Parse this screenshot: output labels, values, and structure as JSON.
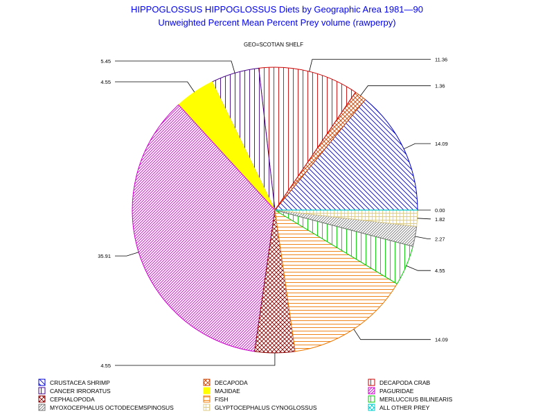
{
  "chart_data": {
    "type": "pie",
    "title": "HIPPOGLOSSUS HIPPOGLOSSUS Diets by Geographic Area 1981—90",
    "subtitle": "Unweighted Percent Mean Percent Prey  volume (rawperpy)",
    "geo_label": "GEO=SCOTIAN SHELF",
    "start_angle_deg": 0,
    "direction": "counterclockwise",
    "legend_position": "bottom",
    "slices": [
      {
        "name": "CRUSTACEA SHRIMP",
        "value": 14.09,
        "label": "14.09",
        "color": "#0000cc",
        "pattern": "diag-down"
      },
      {
        "name": "DECAPODA",
        "value": 1.36,
        "label": "1.36",
        "color": "#cc4400",
        "pattern": "cross"
      },
      {
        "name": "DECAPODA CRAB",
        "value": 11.36,
        "label": "11.36",
        "color": "#cc0000",
        "pattern": "vert"
      },
      {
        "name": "CANCER IRRORATUS",
        "value": 5.45,
        "label": "5.45",
        "color": "#440088",
        "pattern": "vert"
      },
      {
        "name": "MAJIDAE",
        "value": 4.55,
        "label": "4.55",
        "color": "#ffff00",
        "pattern": "solid"
      },
      {
        "name": "PAGURIDAE",
        "value": 35.91,
        "label": "35.91",
        "color": "#cc00cc",
        "pattern": "diag-up"
      },
      {
        "name": "CEPHALOPODA",
        "value": 4.55,
        "label": "4.55",
        "color": "#880000",
        "pattern": "cross"
      },
      {
        "name": "FISH",
        "value": 14.09,
        "label": "14.09",
        "color": "#ee7700",
        "pattern": "horiz"
      },
      {
        "name": "MERLUCCIUS BILINEARIS",
        "value": 4.55,
        "label": "4.55",
        "color": "#00cc00",
        "pattern": "vert"
      },
      {
        "name": "MYOXOCEPHALUS OCTODECEMSPINOSUS",
        "value": 2.27,
        "label": "2.27",
        "color": "#777777",
        "pattern": "diag-up"
      },
      {
        "name": "GLYPTOCEPHALUS CYNOGLOSSUS",
        "value": 1.82,
        "label": "1.82",
        "color": "#ddcc88",
        "pattern": "grid"
      },
      {
        "name": "ALL OTHER PREY",
        "value": 0.0,
        "label": "0.00",
        "color": "#00cccc",
        "pattern": "cross"
      }
    ]
  }
}
